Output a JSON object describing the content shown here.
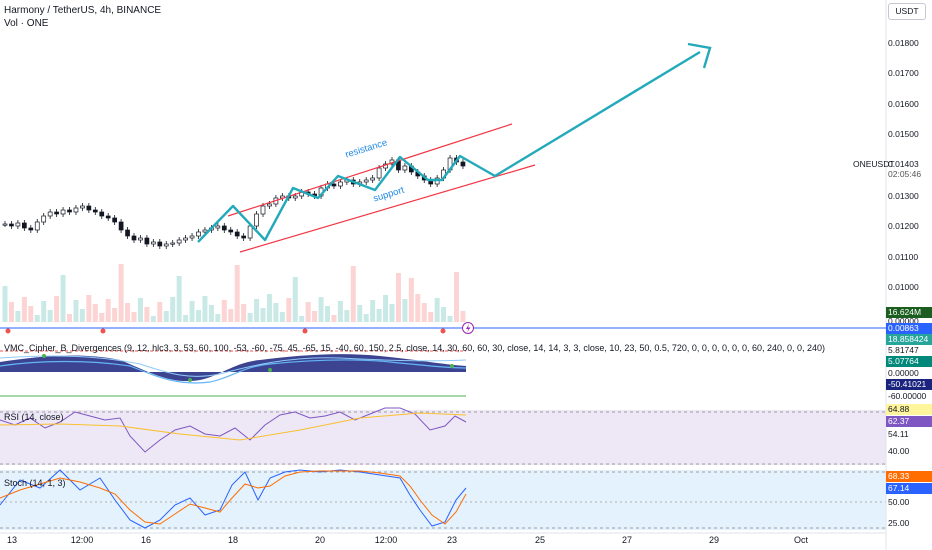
{
  "header": {
    "title": "Harmony / TetherUS, 4h, BINANCE",
    "volume_label": "Vol · ONE"
  },
  "currency_button": "USDT",
  "price_axis": {
    "ticks": [
      "0.01800",
      "0.01700",
      "0.01600",
      "0.01500",
      "0.01300",
      "0.01200",
      "0.01100",
      "0.01000"
    ],
    "symbol_label": "ONEUSDT",
    "current_price": "0.01403",
    "countdown": "02:05:46"
  },
  "tags": {
    "volume": "16.624M",
    "volume_sub": "0.00000",
    "blue_line": "0.00863",
    "vmc_1": "18.858424",
    "vmc_2": "5.81747",
    "vmc_3": "5.07764",
    "vmc_4": "0.00000",
    "vmc_5": "-50.41021",
    "vmc_6": "-60.00000",
    "rsi_1": "64.88",
    "rsi_2": "62.37",
    "rsi_3": "54.11",
    "rsi_4": "40.00",
    "stoch_1": "68.33",
    "stoch_2": "67.14",
    "stoch_3": "50.00",
    "stoch_4": "25.00"
  },
  "annotations": {
    "resistance": "resistance",
    "support": "support"
  },
  "indicators": {
    "vmc": "VMC_Cipher_B_Divergences (9, 12, hlc3, 3, 53, 60, 100, -53, -60, -75, 45, -65, 15, -40, 60, 150, 2.5, close, 14, 30, 60, 60, 30, close, 14, 14, 3, 3, close, 10, 23, 50, 0.5, 720, 0, 0, 0, 0, 0, 0, 60, 240, 0, 0, 240)",
    "rsi": "RSI (14, close)",
    "stoch": "Stoch (14, 1, 3)"
  },
  "time_axis": [
    "13",
    "12:00",
    "16",
    "18",
    "20",
    "12:00",
    "23",
    "25",
    "27",
    "29",
    "Oct"
  ],
  "colors": {
    "up": "#26a69a",
    "down": "#ef5350",
    "drawing": "#22aabb",
    "channel": "#f23645",
    "blue_line": "#2962ff",
    "rsi_bg": "#ede7f6",
    "stoch_bg": "#e3f2fd"
  },
  "icons": {
    "alert": "lightning-icon"
  }
}
